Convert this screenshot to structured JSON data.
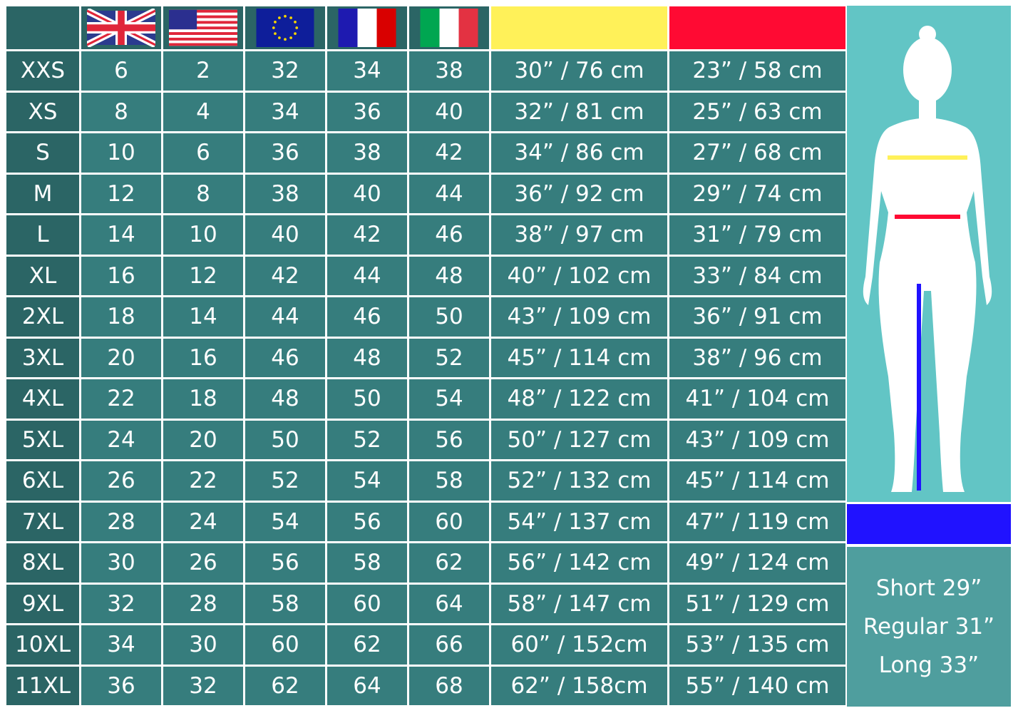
{
  "headers": {
    "flags": [
      "uk-flag",
      "us-flag",
      "eu-flag",
      "france-flag",
      "italy-flag"
    ],
    "bust_color": "#fff159",
    "waist_color": "#ff0a33",
    "inseam_color": "#2012ff"
  },
  "rows": [
    [
      "XXS",
      "6",
      "2",
      "32",
      "34",
      "38",
      "30” / 76 cm",
      "23” / 58 cm"
    ],
    [
      "XS",
      "8",
      "4",
      "34",
      "36",
      "40",
      "32” / 81 cm",
      "25” / 63 cm"
    ],
    [
      "S",
      "10",
      "6",
      "36",
      "38",
      "42",
      "34” / 86 cm",
      "27” / 68 cm"
    ],
    [
      "M",
      "12",
      "8",
      "38",
      "40",
      "44",
      "36” / 92 cm",
      "29” / 74 cm"
    ],
    [
      "L",
      "14",
      "10",
      "40",
      "42",
      "46",
      "38” / 97 cm",
      "31” / 79 cm"
    ],
    [
      "XL",
      "16",
      "12",
      "42",
      "44",
      "48",
      "40” / 102 cm",
      "33” / 84 cm"
    ],
    [
      "2XL",
      "18",
      "14",
      "44",
      "46",
      "50",
      "43” / 109 cm",
      "36” / 91 cm"
    ],
    [
      "3XL",
      "20",
      "16",
      "46",
      "48",
      "52",
      "45” / 114 cm",
      "38” / 96 cm"
    ],
    [
      "4XL",
      "22",
      "18",
      "48",
      "50",
      "54",
      "48” / 122 cm",
      "41” / 104 cm"
    ],
    [
      "5XL",
      "24",
      "20",
      "50",
      "52",
      "56",
      "50” / 127 cm",
      "43” / 109 cm"
    ],
    [
      "6XL",
      "26",
      "22",
      "52",
      "54",
      "58",
      "52” / 132 cm",
      "45” / 114 cm"
    ],
    [
      "7XL",
      "28",
      "24",
      "54",
      "56",
      "60",
      "54” / 137 cm",
      "47” / 119 cm"
    ],
    [
      "8XL",
      "30",
      "26",
      "56",
      "58",
      "62",
      "56” / 142 cm",
      "49” / 124 cm"
    ],
    [
      "9XL",
      "32",
      "28",
      "58",
      "60",
      "64",
      "58” / 147 cm",
      "51” / 129 cm"
    ],
    [
      "10XL",
      "34",
      "30",
      "60",
      "62",
      "66",
      "60” / 152cm",
      "53” / 135 cm"
    ],
    [
      "11XL",
      "36",
      "32",
      "62",
      "64",
      "68",
      "62” / 158cm",
      "55” / 140 cm"
    ]
  ],
  "inseam": [
    "Short 29”",
    "Regular 31”",
    "Long 33”"
  ]
}
